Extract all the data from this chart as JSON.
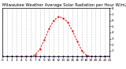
{
  "title": "Milwaukee Weather Average Solar Radiation per Hour W/m2 (Last 24 Hours)",
  "red_line_x": [
    0,
    1,
    2,
    3,
    4,
    5,
    6,
    7,
    8,
    9,
    10,
    11,
    12,
    13,
    14,
    15,
    16,
    17,
    18,
    19,
    20,
    21,
    22,
    23
  ],
  "red_line_y": [
    0,
    0,
    0,
    0,
    0,
    0,
    2,
    30,
    120,
    280,
    460,
    600,
    660,
    640,
    570,
    430,
    260,
    100,
    20,
    2,
    0,
    0,
    0,
    0
  ],
  "blue_line_x": [
    0,
    1,
    2,
    3,
    4,
    5,
    6,
    7,
    8,
    9,
    10,
    11,
    12,
    13,
    14,
    15,
    16,
    17,
    18,
    19,
    20,
    21,
    22,
    23
  ],
  "blue_line_y": [
    0,
    0,
    0,
    0,
    0,
    0,
    0,
    0,
    0,
    0,
    0,
    0,
    0,
    0,
    0,
    0,
    0,
    0,
    0,
    0,
    0,
    0,
    2,
    5
  ],
  "ylim": [
    0,
    800
  ],
  "xlim": [
    0,
    23
  ],
  "yticks": [
    100,
    200,
    300,
    400,
    500,
    600,
    700,
    800
  ],
  "ytick_labels": [
    "1",
    "2",
    "3",
    "4",
    "5",
    "6",
    "7",
    "8"
  ],
  "xticks": [
    0,
    1,
    2,
    3,
    4,
    5,
    6,
    7,
    8,
    9,
    10,
    11,
    12,
    13,
    14,
    15,
    16,
    17,
    18,
    19,
    20,
    21,
    22,
    23
  ],
  "red_color": "#ff0000",
  "blue_color": "#000099",
  "grid_color": "#999999",
  "bg_color": "#ffffff",
  "title_fontsize": 3.8,
  "tick_fontsize": 3.0,
  "line_width": 0.7,
  "marker_size": 1.2
}
